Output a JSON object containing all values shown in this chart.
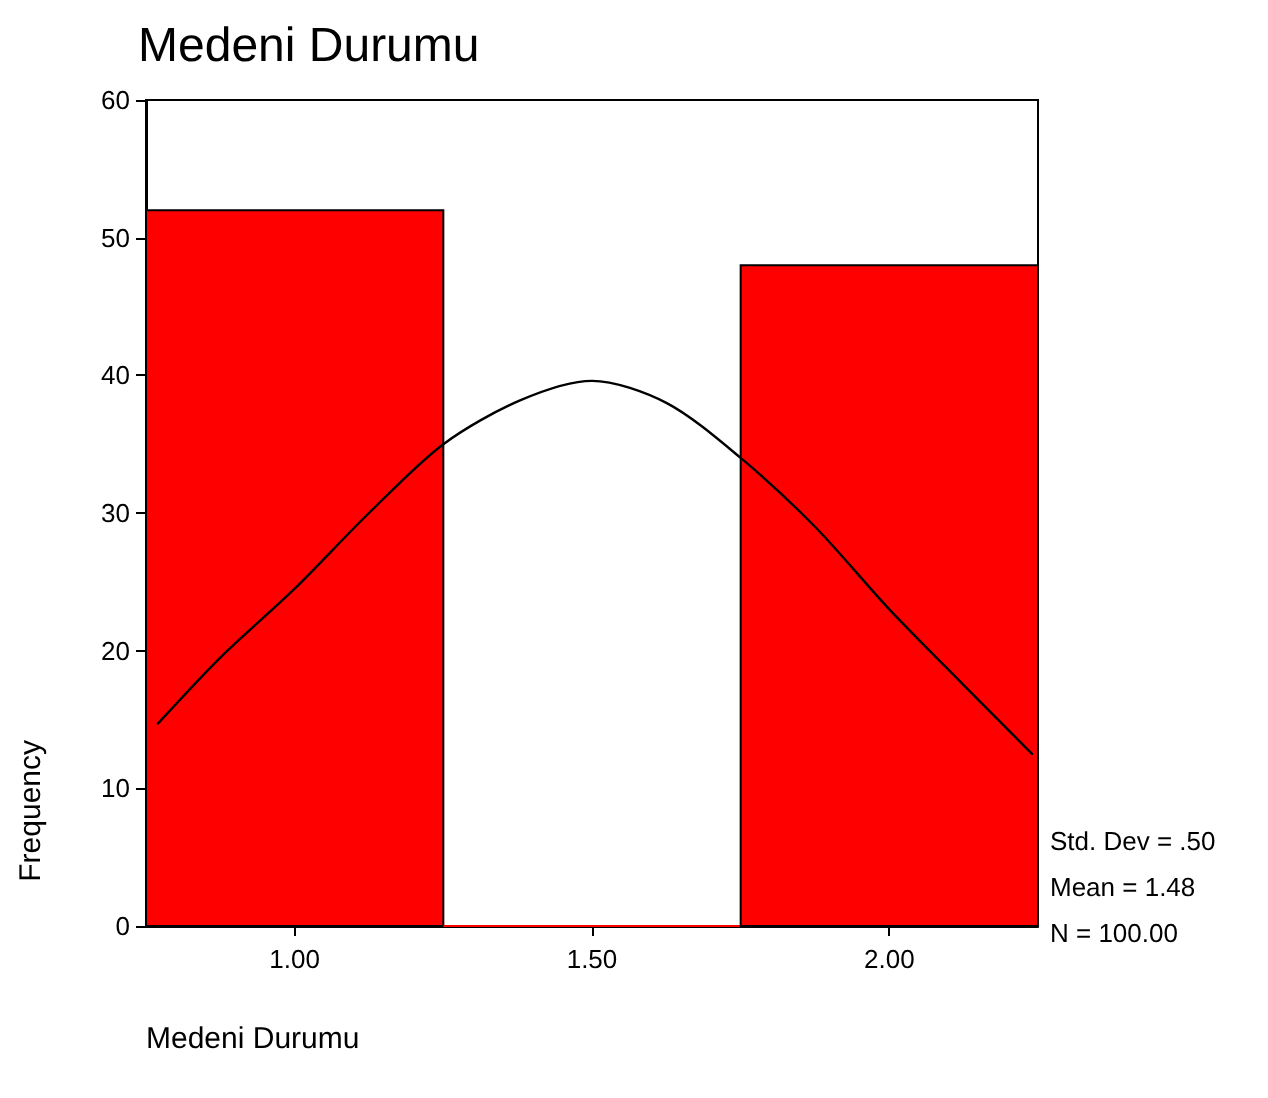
{
  "chart_data": {
    "type": "histogram",
    "title": "Medeni Durumu",
    "xlabel": "Medeni Durumu",
    "ylabel": "Frequency",
    "bins": [
      0.75,
      1.25,
      1.75,
      2.25
    ],
    "series": [
      {
        "type": "histogram",
        "color": "#ff0000",
        "values": [
          52,
          0,
          48
        ]
      },
      {
        "type": "line",
        "color": "#000000",
        "x": [
          0.77,
          0.875,
          1.0,
          1.125,
          1.25,
          1.38,
          1.5,
          1.625,
          1.75,
          1.875,
          2.0,
          2.125,
          2.24
        ],
        "values": [
          14.7,
          19.5,
          24.5,
          30,
          35,
          38.2,
          39.6,
          38,
          34,
          29,
          23,
          17.5,
          12.5
        ]
      }
    ],
    "xlim": [
      0.75,
      2.25
    ],
    "xticks": [
      {
        "value": 1,
        "label": "1.00"
      },
      {
        "value": 1.5,
        "label": "1.50"
      },
      {
        "value": 2,
        "label": "2.00"
      }
    ],
    "ylim": [
      0,
      60
    ],
    "yticks": [
      0,
      10,
      20,
      30,
      40,
      50,
      60
    ],
    "grid": false,
    "marker": "none",
    "line_style": "solid",
    "annotations": [
      "Std. Dev = .50",
      "Mean = 1.48",
      "N = 100.00"
    ]
  }
}
